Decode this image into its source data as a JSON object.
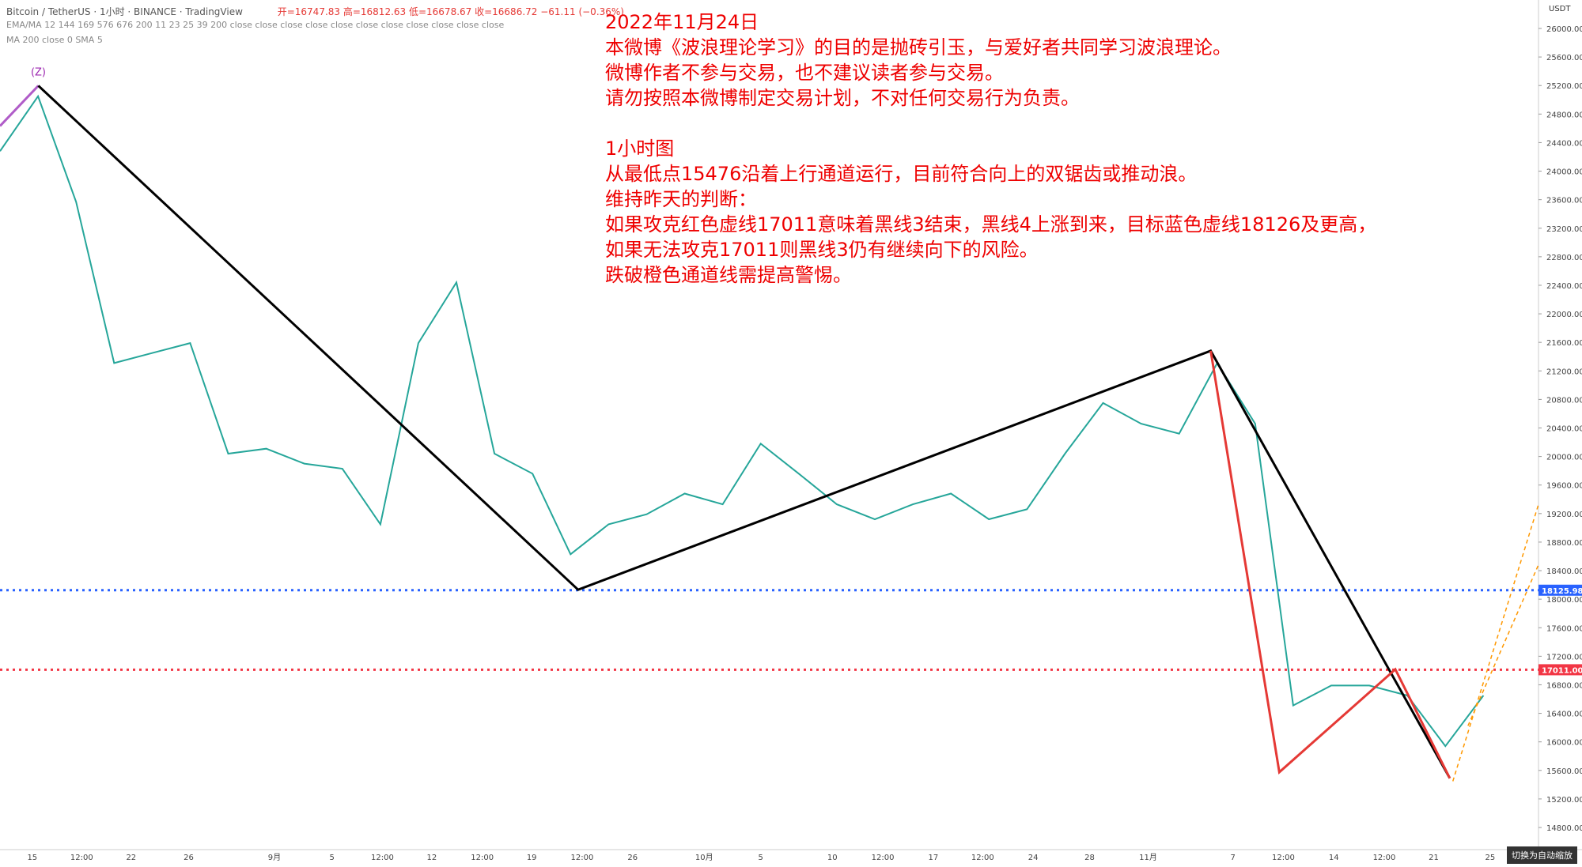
{
  "header": {
    "symbol": "Bitcoin / TetherUS · 1小时 · BINANCE · TradingView",
    "ohlc": "开=16747.83 高=16812.63 低=16678.67 收=16686.72 −61.11 (−0.36%)",
    "indicators1": "EMA/MA 12 144 169 576 676 200 11 23 25 39 200 close close close close close close close close close close close",
    "indicators2": "MA 200 close 0 SMA 5"
  },
  "annotation": {
    "lines": [
      "2022年11月24日",
      "本微博《波浪理论学习》的目的是抛砖引玉，与爱好者共同学习波浪理论。",
      "微博作者不参与交易，也不建议读者参与交易。",
      "请勿按照本微博制定交易计划，不对任何交易行为负责。",
      "1小时图",
      "从最低点15476沿着上行通道运行，目前符合向上的双锯齿或推动浪。",
      "维持昨天的判断：",
      "如果攻克红色虚线17011意味着黑线3结束，黑线4上涨到来，目标蓝色虚线18126及更高，",
      "如果无法攻克17011则黑线3仍有继续向下的风险。",
      "跌破橙色通道线需提高警惕。"
    ]
  },
  "price_axis": {
    "currency": "USDT",
    "ylim": [
      14800,
      26000
    ],
    "ticks": [
      {
        "value": 26000,
        "label": "26000.00"
      },
      {
        "value": 25600,
        "label": "25600.00"
      },
      {
        "value": 25200,
        "label": "25200.00"
      },
      {
        "value": 24800,
        "label": "24800.00"
      },
      {
        "value": 24400,
        "label": "24400.00"
      },
      {
        "value": 24000,
        "label": "24000.00"
      },
      {
        "value": 23600,
        "label": "23600.00"
      },
      {
        "value": 23200,
        "label": "23200.00"
      },
      {
        "value": 22800,
        "label": "22800.00"
      },
      {
        "value": 22400,
        "label": "22400.00"
      },
      {
        "value": 22000,
        "label": "22000.00"
      },
      {
        "value": 21600,
        "label": "21600.00"
      },
      {
        "value": 21200,
        "label": "21200.00"
      },
      {
        "value": 20800,
        "label": "20800.00"
      },
      {
        "value": 20400,
        "label": "20400.00"
      },
      {
        "value": 20000,
        "label": "20000.00"
      },
      {
        "value": 19600,
        "label": "19600.00"
      },
      {
        "value": 19200,
        "label": "19200.00"
      },
      {
        "value": 18800,
        "label": "18800.00"
      },
      {
        "value": 18400,
        "label": "18400.00"
      },
      {
        "value": 18000,
        "label": "18000.00"
      },
      {
        "value": 17600,
        "label": "17600.00"
      },
      {
        "value": 17200,
        "label": "17200.00"
      },
      {
        "value": 16800,
        "label": "16800.00"
      },
      {
        "value": 16400,
        "label": "16400.00"
      },
      {
        "value": 16000,
        "label": "16000.00"
      },
      {
        "value": 15600,
        "label": "15600.00"
      },
      {
        "value": 15200,
        "label": "15200.00"
      },
      {
        "value": 14800,
        "label": "14800.00"
      }
    ]
  },
  "time_axis": {
    "labels": [
      "15",
      "12:00",
      "22",
      "26",
      "9月",
      "5",
      "12:00",
      "12",
      "12:00",
      "19",
      "12:00",
      "26",
      "10月",
      "5",
      "10",
      "12:00",
      "17",
      "12:00",
      "24",
      "28",
      "11月",
      "7",
      "12:00",
      "14",
      "12:00",
      "21",
      "25"
    ]
  },
  "levels": [
    {
      "value": 18125.98,
      "label": "18125.98",
      "color": "#2962ff"
    },
    {
      "value": 17011,
      "label": "17011.00",
      "color": "#f23645"
    }
  ],
  "wave_label": "(Z)",
  "price_estimate": {
    "color": "#26a69a",
    "values": [
      24280,
      25050,
      23570,
      21310,
      21450,
      21590,
      20040,
      20110,
      19900,
      19830,
      19050,
      21590,
      22440,
      20040,
      19760,
      18630,
      19050,
      19190,
      19480,
      19330,
      20180,
      19760,
      19330,
      19120,
      19330,
      19480,
      19120,
      19260,
      20040,
      20750,
      20460,
      20320,
      21310,
      20460,
      16510,
      16790,
      16790,
      16650,
      15940,
      16650
    ]
  },
  "button": "切换为自动缩放"
}
